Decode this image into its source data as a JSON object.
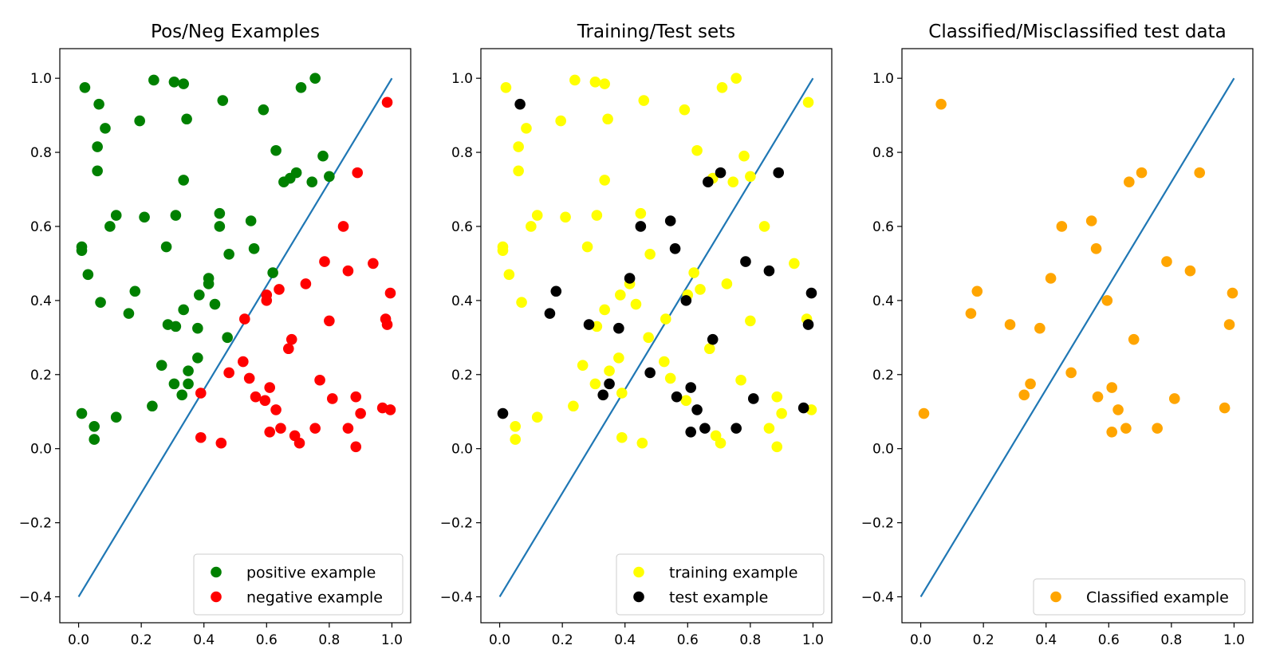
{
  "chart_data": [
    {
      "type": "scatter",
      "title": "Pos/Neg Examples",
      "xlabel": "",
      "ylabel": "",
      "xlim": [
        -0.06,
        1.06
      ],
      "ylim": [
        -0.47,
        1.08
      ],
      "xticks": [
        0.0,
        0.2,
        0.4,
        0.6,
        0.8,
        1.0
      ],
      "yticks": [
        -0.4,
        -0.2,
        0.0,
        0.2,
        0.4,
        0.6,
        0.8,
        1.0
      ],
      "legend_position": "lower-right",
      "grid": false,
      "line": {
        "color": "#1f77b4",
        "x": [
          0.0,
          1.0
        ],
        "y": [
          -0.4,
          1.0
        ]
      },
      "series": [
        {
          "name": "positive example",
          "color": "#008000",
          "points": [
            [
              0.02,
              0.975
            ],
            [
              0.24,
              0.995
            ],
            [
              0.305,
              0.99
            ],
            [
              0.335,
              0.985
            ],
            [
              0.755,
              1.0
            ],
            [
              0.065,
              0.93
            ],
            [
              0.46,
              0.94
            ],
            [
              0.59,
              0.915
            ],
            [
              0.71,
              0.975
            ],
            [
              0.085,
              0.865
            ],
            [
              0.195,
              0.885
            ],
            [
              0.345,
              0.89
            ],
            [
              0.06,
              0.815
            ],
            [
              0.63,
              0.805
            ],
            [
              0.78,
              0.79
            ],
            [
              0.06,
              0.75
            ],
            [
              0.335,
              0.725
            ],
            [
              0.655,
              0.72
            ],
            [
              0.675,
              0.73
            ],
            [
              0.695,
              0.745
            ],
            [
              0.745,
              0.72
            ],
            [
              0.8,
              0.735
            ],
            [
              0.12,
              0.63
            ],
            [
              0.21,
              0.625
            ],
            [
              0.31,
              0.63
            ],
            [
              0.1,
              0.6
            ],
            [
              0.45,
              0.635
            ],
            [
              0.55,
              0.615
            ],
            [
              0.45,
              0.6
            ],
            [
              0.01,
              0.545
            ],
            [
              0.01,
              0.535
            ],
            [
              0.28,
              0.545
            ],
            [
              0.56,
              0.54
            ],
            [
              0.48,
              0.525
            ],
            [
              0.03,
              0.47
            ],
            [
              0.415,
              0.46
            ],
            [
              0.415,
              0.445
            ],
            [
              0.62,
              0.475
            ],
            [
              0.07,
              0.395
            ],
            [
              0.18,
              0.425
            ],
            [
              0.385,
              0.415
            ],
            [
              0.435,
              0.39
            ],
            [
              0.16,
              0.365
            ],
            [
              0.335,
              0.375
            ],
            [
              0.285,
              0.335
            ],
            [
              0.31,
              0.33
            ],
            [
              0.38,
              0.325
            ],
            [
              0.475,
              0.3
            ],
            [
              0.38,
              0.245
            ],
            [
              0.265,
              0.225
            ],
            [
              0.35,
              0.21
            ],
            [
              0.305,
              0.175
            ],
            [
              0.35,
              0.175
            ],
            [
              0.33,
              0.145
            ],
            [
              0.235,
              0.115
            ],
            [
              0.01,
              0.095
            ],
            [
              0.12,
              0.085
            ],
            [
              0.05,
              0.06
            ],
            [
              0.05,
              0.025
            ]
          ]
        },
        {
          "name": "negative example",
          "color": "#ff0000",
          "points": [
            [
              0.985,
              0.935
            ],
            [
              0.89,
              0.745
            ],
            [
              0.845,
              0.6
            ],
            [
              0.785,
              0.505
            ],
            [
              0.86,
              0.48
            ],
            [
              0.94,
              0.5
            ],
            [
              0.995,
              0.42
            ],
            [
              0.6,
              0.415
            ],
            [
              0.6,
              0.4
            ],
            [
              0.64,
              0.43
            ],
            [
              0.725,
              0.445
            ],
            [
              0.98,
              0.35
            ],
            [
              0.985,
              0.335
            ],
            [
              0.53,
              0.35
            ],
            [
              0.8,
              0.345
            ],
            [
              0.68,
              0.295
            ],
            [
              0.67,
              0.27
            ],
            [
              0.525,
              0.235
            ],
            [
              0.48,
              0.205
            ],
            [
              0.545,
              0.19
            ],
            [
              0.77,
              0.185
            ],
            [
              0.39,
              0.15
            ],
            [
              0.61,
              0.165
            ],
            [
              0.565,
              0.14
            ],
            [
              0.595,
              0.13
            ],
            [
              0.81,
              0.135
            ],
            [
              0.885,
              0.14
            ],
            [
              0.63,
              0.105
            ],
            [
              0.97,
              0.11
            ],
            [
              0.995,
              0.105
            ],
            [
              0.9,
              0.095
            ],
            [
              0.645,
              0.055
            ],
            [
              0.755,
              0.055
            ],
            [
              0.86,
              0.055
            ],
            [
              0.61,
              0.045
            ],
            [
              0.69,
              0.035
            ],
            [
              0.39,
              0.03
            ],
            [
              0.455,
              0.015
            ],
            [
              0.705,
              0.015
            ],
            [
              0.885,
              0.005
            ]
          ]
        }
      ]
    },
    {
      "type": "scatter",
      "title": "Training/Test sets",
      "xlabel": "",
      "ylabel": "",
      "xlim": [
        -0.06,
        1.06
      ],
      "ylim": [
        -0.47,
        1.08
      ],
      "xticks": [
        0.0,
        0.2,
        0.4,
        0.6,
        0.8,
        1.0
      ],
      "yticks": [
        -0.4,
        -0.2,
        0.0,
        0.2,
        0.4,
        0.6,
        0.8,
        1.0
      ],
      "legend_position": "lower-right",
      "grid": false,
      "line": {
        "color": "#1f77b4",
        "x": [
          0.0,
          1.0
        ],
        "y": [
          -0.4,
          1.0
        ]
      },
      "series": [
        {
          "name": "training example",
          "color": "#ffff00",
          "points": [
            [
              0.02,
              0.975
            ],
            [
              0.24,
              0.995
            ],
            [
              0.305,
              0.99
            ],
            [
              0.335,
              0.985
            ],
            [
              0.755,
              1.0
            ],
            [
              0.71,
              0.975
            ],
            [
              0.46,
              0.94
            ],
            [
              0.59,
              0.915
            ],
            [
              0.985,
              0.935
            ],
            [
              0.085,
              0.865
            ],
            [
              0.195,
              0.885
            ],
            [
              0.345,
              0.89
            ],
            [
              0.06,
              0.815
            ],
            [
              0.63,
              0.805
            ],
            [
              0.78,
              0.79
            ],
            [
              0.06,
              0.75
            ],
            [
              0.335,
              0.725
            ],
            [
              0.68,
              0.73
            ],
            [
              0.745,
              0.72
            ],
            [
              0.8,
              0.735
            ],
            [
              0.12,
              0.63
            ],
            [
              0.21,
              0.625
            ],
            [
              0.31,
              0.63
            ],
            [
              0.1,
              0.6
            ],
            [
              0.45,
              0.635
            ],
            [
              0.845,
              0.6
            ],
            [
              0.01,
              0.545
            ],
            [
              0.01,
              0.535
            ],
            [
              0.28,
              0.545
            ],
            [
              0.48,
              0.525
            ],
            [
              0.94,
              0.5
            ],
            [
              0.03,
              0.47
            ],
            [
              0.62,
              0.475
            ],
            [
              0.415,
              0.445
            ],
            [
              0.64,
              0.43
            ],
            [
              0.725,
              0.445
            ],
            [
              0.6,
              0.415
            ],
            [
              0.07,
              0.395
            ],
            [
              0.385,
              0.415
            ],
            [
              0.435,
              0.39
            ],
            [
              0.335,
              0.375
            ],
            [
              0.53,
              0.35
            ],
            [
              0.98,
              0.35
            ],
            [
              0.31,
              0.33
            ],
            [
              0.8,
              0.345
            ],
            [
              0.475,
              0.3
            ],
            [
              0.67,
              0.27
            ],
            [
              0.38,
              0.245
            ],
            [
              0.265,
              0.225
            ],
            [
              0.525,
              0.235
            ],
            [
              0.35,
              0.21
            ],
            [
              0.545,
              0.19
            ],
            [
              0.77,
              0.185
            ],
            [
              0.305,
              0.175
            ],
            [
              0.39,
              0.15
            ],
            [
              0.595,
              0.13
            ],
            [
              0.885,
              0.14
            ],
            [
              0.235,
              0.115
            ],
            [
              0.12,
              0.085
            ],
            [
              0.995,
              0.105
            ],
            [
              0.9,
              0.095
            ],
            [
              0.05,
              0.06
            ],
            [
              0.86,
              0.055
            ],
            [
              0.05,
              0.025
            ],
            [
              0.39,
              0.03
            ],
            [
              0.69,
              0.035
            ],
            [
              0.455,
              0.015
            ],
            [
              0.705,
              0.015
            ],
            [
              0.885,
              0.005
            ]
          ]
        },
        {
          "name": "test example",
          "color": "#000000",
          "points": [
            [
              0.065,
              0.93
            ],
            [
              0.705,
              0.745
            ],
            [
              0.89,
              0.745
            ],
            [
              0.665,
              0.72
            ],
            [
              0.545,
              0.615
            ],
            [
              0.45,
              0.6
            ],
            [
              0.56,
              0.54
            ],
            [
              0.785,
              0.505
            ],
            [
              0.86,
              0.48
            ],
            [
              0.415,
              0.46
            ],
            [
              0.18,
              0.425
            ],
            [
              0.995,
              0.42
            ],
            [
              0.595,
              0.4
            ],
            [
              0.16,
              0.365
            ],
            [
              0.285,
              0.335
            ],
            [
              0.38,
              0.325
            ],
            [
              0.985,
              0.335
            ],
            [
              0.68,
              0.295
            ],
            [
              0.48,
              0.205
            ],
            [
              0.35,
              0.175
            ],
            [
              0.61,
              0.165
            ],
            [
              0.33,
              0.145
            ],
            [
              0.565,
              0.14
            ],
            [
              0.81,
              0.135
            ],
            [
              0.63,
              0.105
            ],
            [
              0.97,
              0.11
            ],
            [
              0.01,
              0.095
            ],
            [
              0.655,
              0.055
            ],
            [
              0.755,
              0.055
            ],
            [
              0.61,
              0.045
            ]
          ]
        }
      ]
    },
    {
      "type": "scatter",
      "title": "Classified/Misclassified test data",
      "xlabel": "",
      "ylabel": "",
      "xlim": [
        -0.06,
        1.06
      ],
      "ylim": [
        -0.47,
        1.08
      ],
      "xticks": [
        0.0,
        0.2,
        0.4,
        0.6,
        0.8,
        1.0
      ],
      "yticks": [
        -0.4,
        -0.2,
        0.0,
        0.2,
        0.4,
        0.6,
        0.8,
        1.0
      ],
      "legend_position": "lower-right",
      "grid": false,
      "line": {
        "color": "#1f77b4",
        "x": [
          0.0,
          1.0
        ],
        "y": [
          -0.4,
          1.0
        ]
      },
      "series": [
        {
          "name": "Classified example",
          "color": "#ffa500",
          "points": [
            [
              0.065,
              0.93
            ],
            [
              0.705,
              0.745
            ],
            [
              0.89,
              0.745
            ],
            [
              0.665,
              0.72
            ],
            [
              0.545,
              0.615
            ],
            [
              0.45,
              0.6
            ],
            [
              0.56,
              0.54
            ],
            [
              0.785,
              0.505
            ],
            [
              0.86,
              0.48
            ],
            [
              0.415,
              0.46
            ],
            [
              0.18,
              0.425
            ],
            [
              0.995,
              0.42
            ],
            [
              0.595,
              0.4
            ],
            [
              0.16,
              0.365
            ],
            [
              0.285,
              0.335
            ],
            [
              0.38,
              0.325
            ],
            [
              0.985,
              0.335
            ],
            [
              0.68,
              0.295
            ],
            [
              0.48,
              0.205
            ],
            [
              0.35,
              0.175
            ],
            [
              0.61,
              0.165
            ],
            [
              0.33,
              0.145
            ],
            [
              0.565,
              0.14
            ],
            [
              0.81,
              0.135
            ],
            [
              0.63,
              0.105
            ],
            [
              0.97,
              0.11
            ],
            [
              0.01,
              0.095
            ],
            [
              0.655,
              0.055
            ],
            [
              0.755,
              0.055
            ],
            [
              0.61,
              0.045
            ]
          ]
        }
      ]
    }
  ]
}
